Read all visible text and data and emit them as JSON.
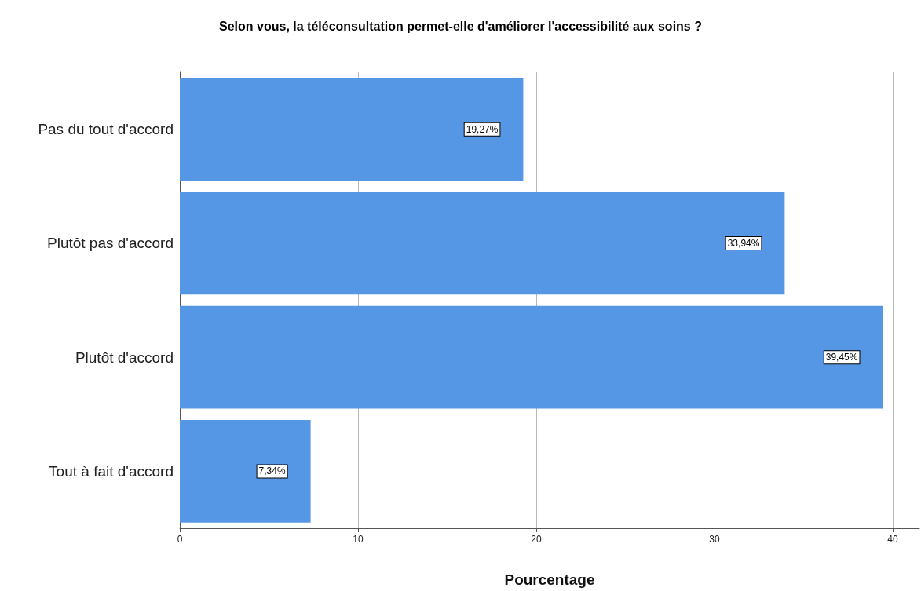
{
  "chart_data": {
    "type": "bar",
    "orientation": "horizontal",
    "title": "Selon vous, la téléconsultation permet-elle d'améliorer l'accessibilité aux soins ?",
    "xlabel": "Pourcentage",
    "categories": [
      "Pas du tout d'accord",
      "Plutôt pas d'accord",
      "Plutôt d'accord",
      "Tout à fait d'accord"
    ],
    "values": [
      19.27,
      33.94,
      39.45,
      7.34
    ],
    "value_labels": [
      "19,27%",
      "33,94%",
      "39,45%",
      "7,34%"
    ],
    "color": "#5597e5",
    "xlim": [
      0,
      41.5
    ],
    "xticks": [
      0,
      10,
      20,
      30,
      40
    ],
    "grid": "x"
  }
}
